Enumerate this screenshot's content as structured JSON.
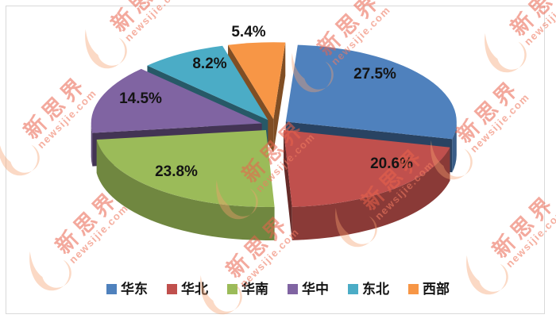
{
  "chart_data": {
    "type": "pie",
    "style": "3d-exploded-pie",
    "title": "",
    "categories": [
      "华东",
      "华北",
      "华南",
      "华中",
      "东北",
      "西部"
    ],
    "values": [
      27.5,
      20.6,
      23.8,
      14.5,
      8.2,
      5.4
    ],
    "labels": [
      "27.5%",
      "20.6%",
      "23.8%",
      "14.5%",
      "8.2%",
      "5.4%"
    ],
    "colors": [
      "#4F81BD",
      "#C0504D",
      "#9BBB59",
      "#8064A2",
      "#4BACC6",
      "#F79646"
    ],
    "unit": "%",
    "start_angle_deg": 4,
    "direction": "clockwise",
    "legend_position": "bottom",
    "grid": false
  },
  "watermark": {
    "text": "新思界",
    "subtext": "newsijie.com",
    "text_color": "#E9624C",
    "flame_color": "#F6A06E"
  },
  "frame": {
    "border_color": "#D9D9D9",
    "background": "#FFFFFF"
  }
}
